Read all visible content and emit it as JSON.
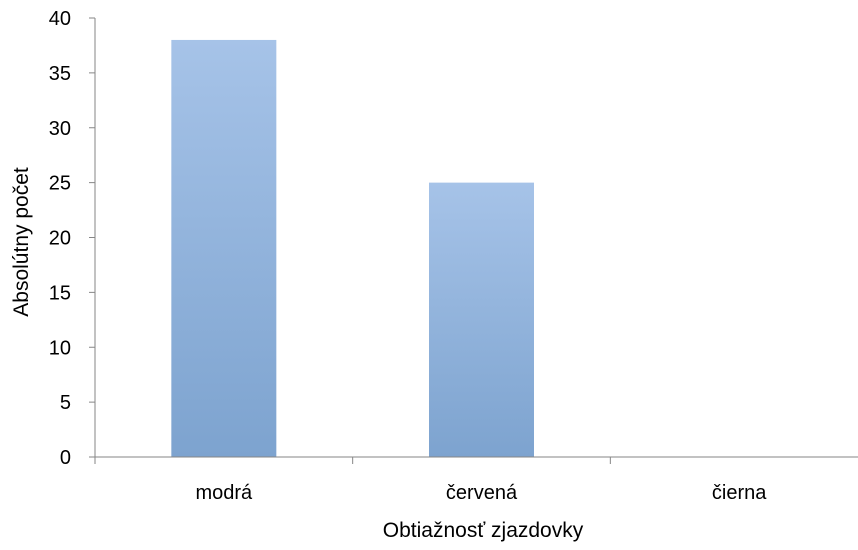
{
  "chart_data": {
    "type": "bar",
    "title": "",
    "xlabel": "Obtiažnosť zjazdovky",
    "ylabel": "Absolútny počet",
    "categories": [
      "modrá",
      "červená",
      "čierna"
    ],
    "series": [
      {
        "values": [
          38,
          25,
          0
        ]
      }
    ],
    "ylim": [
      0,
      40
    ],
    "yticks": [
      0,
      5,
      10,
      15,
      20,
      25,
      30,
      35,
      40
    ],
    "grid": false,
    "legend": "none",
    "colors": {
      "bar_top": "#a6c3e8",
      "bar_bottom": "#7da3cf",
      "axis": "#868686"
    }
  }
}
